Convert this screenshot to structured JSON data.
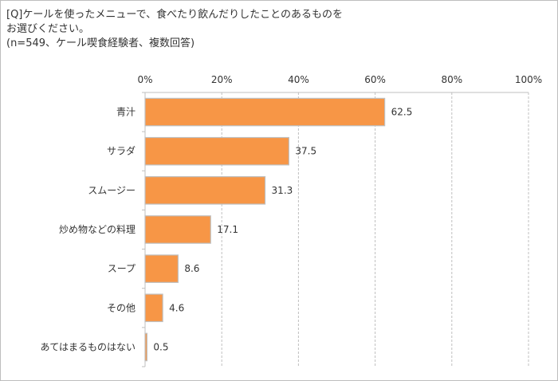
{
  "title_lines": [
    "[Q]ケールを使ったメニューで、食べたり飲んだりしたことのあるものを",
    "お選びください。",
    "(n=549、ケール喫食経験者、複数回答)"
  ],
  "chart_data": {
    "type": "bar",
    "orientation": "horizontal",
    "categories": [
      "青汁",
      "サラダ",
      "スムージー",
      "炒め物などの料理",
      "スープ",
      "その他",
      "あてはまるものはない"
    ],
    "values": [
      62.5,
      37.5,
      31.3,
      17.1,
      8.6,
      4.6,
      0.5
    ],
    "data_labels": [
      "62.5",
      "37.5",
      "31.3",
      "17.1",
      "8.6",
      "4.6",
      "0.5"
    ],
    "xlim": [
      0,
      100
    ],
    "x_ticks": [
      "0%",
      "20%",
      "40%",
      "60%",
      "80%",
      "100%"
    ],
    "x_axis_position": "top",
    "grid": true,
    "bar_color": "#F79646",
    "bar_border_color": "#BFBFBF"
  }
}
